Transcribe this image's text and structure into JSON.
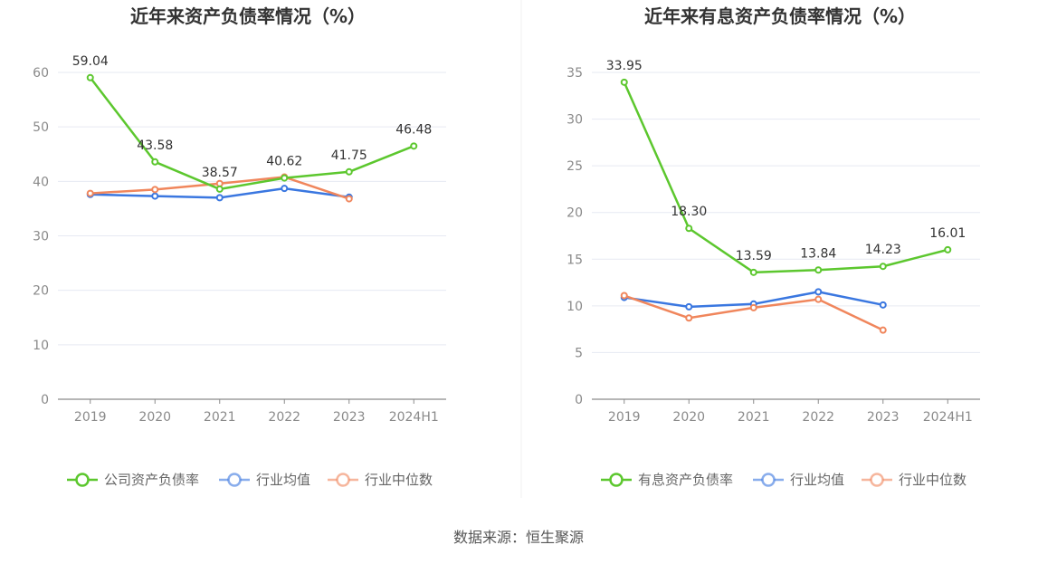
{
  "source_text": "数据来源：恒生聚源",
  "chart_data": [
    {
      "type": "line",
      "title": "近年来资产负债率情况（%）",
      "categories": [
        "2019",
        "2020",
        "2021",
        "2022",
        "2023",
        "2024H1"
      ],
      "ylim": [
        0,
        60
      ],
      "yticks": [
        0,
        10,
        20,
        30,
        40,
        50,
        60
      ],
      "grid": true,
      "legend_position": "bottom",
      "series": [
        {
          "name": "公司资产负债率",
          "color": "#5cc72e",
          "values": [
            59.04,
            43.58,
            38.57,
            40.62,
            41.75,
            46.48
          ],
          "labels": [
            "59.04",
            "43.58",
            "38.57",
            "40.62",
            "41.75",
            "46.48"
          ]
        },
        {
          "name": "行业均值",
          "color": "#3a77e0",
          "values": [
            37.6,
            37.3,
            37.0,
            38.7,
            37.1,
            null
          ]
        },
        {
          "name": "行业中位数",
          "color": "#f0865c",
          "values": [
            37.8,
            38.5,
            39.6,
            40.8,
            36.8,
            null
          ]
        }
      ]
    },
    {
      "type": "line",
      "title": "近年来有息资产负债率情况（%）",
      "categories": [
        "2019",
        "2020",
        "2021",
        "2022",
        "2023",
        "2024H1"
      ],
      "ylim": [
        0,
        35
      ],
      "yticks": [
        0,
        5,
        10,
        15,
        20,
        25,
        30,
        35
      ],
      "grid": true,
      "legend_position": "bottom",
      "series": [
        {
          "name": "有息资产负债率",
          "color": "#5cc72e",
          "values": [
            33.95,
            18.3,
            13.59,
            13.84,
            14.23,
            16.01
          ],
          "labels": [
            "33.95",
            "18.30",
            "13.59",
            "13.84",
            "14.23",
            "16.01"
          ]
        },
        {
          "name": "行业均值",
          "color": "#3a77e0",
          "values": [
            10.9,
            9.9,
            10.2,
            11.5,
            10.1,
            null
          ]
        },
        {
          "name": "行业中位数",
          "color": "#f0865c",
          "values": [
            11.1,
            8.7,
            9.8,
            10.7,
            7.4,
            null
          ]
        }
      ]
    }
  ]
}
